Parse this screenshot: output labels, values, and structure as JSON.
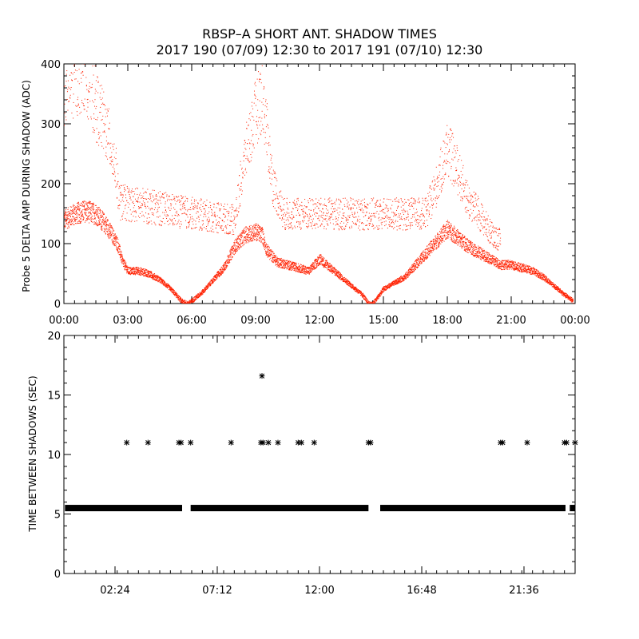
{
  "chart_data": [
    {
      "type": "scatter",
      "title": "RBSP–A SHORT ANT. SHADOW TIMES",
      "subtitle": "2017 190 (07/09) 12:30 to 2017 191 (07/10) 12:30",
      "ylabel": "Probe 5 DELTA AMP DURING SHADOW (ADC)",
      "xlabel": "",
      "x_unit": "hours",
      "xlim": [
        0,
        24
      ],
      "ylim": [
        0,
        400
      ],
      "x_tick_values": [
        0,
        3,
        6,
        9,
        12,
        15,
        18,
        21,
        24
      ],
      "x_tick_labels": [
        "00:00",
        "03:00",
        "06:00",
        "09:00",
        "12:00",
        "15:00",
        "18:00",
        "21:00",
        "00:00"
      ],
      "y_tick_values": [
        0,
        100,
        200,
        300,
        400
      ],
      "y_tick_labels": [
        "0",
        "100",
        "200",
        "300",
        "400"
      ],
      "marker_color": "#ff2000",
      "series": [
        {
          "points_x": [
            0,
            0.5,
            1,
            1.5,
            2,
            2.5,
            2.75,
            3,
            3.5,
            4,
            4.5,
            5,
            5.5,
            5.8,
            6,
            6.5,
            7,
            7.5,
            8,
            8.5,
            9,
            9.3,
            9.5,
            10,
            10.5,
            11,
            11.5,
            12,
            12.5,
            13,
            13.5,
            14,
            14.3,
            14.5,
            15,
            15.5,
            16,
            16.5,
            17,
            17.5,
            18,
            18.5,
            19,
            19.5,
            20,
            20.5,
            21,
            21.5,
            22,
            22.5,
            23,
            23.5,
            23.9
          ],
          "points_y": [
            140,
            150,
            155,
            150,
            130,
            100,
            70,
            55,
            55,
            50,
            40,
            25,
            5,
            0,
            5,
            20,
            40,
            60,
            95,
            115,
            120,
            115,
            90,
            70,
            65,
            60,
            55,
            75,
            60,
            45,
            30,
            15,
            0,
            0,
            25,
            35,
            45,
            65,
            85,
            105,
            125,
            110,
            95,
            85,
            75,
            65,
            65,
            60,
            55,
            45,
            30,
            15,
            5
          ]
        },
        {
          "points_x": [
            0,
            0.5,
            1,
            1.5,
            2,
            2.4,
            2.6,
            8,
            8.5,
            9,
            9.3,
            9.5,
            9.8,
            10.3,
            17,
            17.5,
            18,
            18.5,
            19,
            19.5,
            20,
            20.5
          ],
          "points_y": [
            360,
            380,
            390,
            330,
            290,
            230,
            170,
            140,
            250,
            320,
            350,
            290,
            200,
            150,
            150,
            200,
            260,
            220,
            170,
            150,
            120,
            105
          ]
        }
      ]
    },
    {
      "type": "scatter",
      "ylabel": "TIME BETWEEN SHADOWS (SEC)",
      "xlabel": "",
      "x_unit": "hours",
      "xlim": [
        0,
        24
      ],
      "ylim": [
        0,
        20
      ],
      "x_tick_values": [
        2.4,
        7.2,
        12,
        16.8,
        21.6
      ],
      "x_tick_labels": [
        "02:24",
        "07:12",
        "12:00",
        "16:48",
        "21:36"
      ],
      "y_tick_values": [
        0,
        5,
        10,
        15,
        20
      ],
      "y_tick_labels": [
        "0",
        "5",
        "10",
        "15",
        "20"
      ],
      "marker": "*",
      "marker_color": "#000000",
      "baseline": {
        "value": 5.5,
        "segments": [
          [
            0.05,
            5.55
          ],
          [
            5.95,
            14.3
          ],
          [
            14.85,
            23.55
          ],
          [
            23.75,
            24.0
          ]
        ]
      },
      "outliers": {
        "x": [
          2.95,
          3.95,
          5.4,
          5.5,
          5.95,
          7.85,
          9.25,
          9.35,
          9.6,
          10.05,
          11.0,
          11.15,
          11.75,
          14.3,
          14.4,
          20.5,
          20.6,
          21.75,
          23.5,
          23.6,
          24.0
        ],
        "y": [
          11,
          11,
          11,
          11,
          11,
          11,
          11,
          11,
          11,
          11,
          11,
          11,
          11,
          11,
          11,
          11,
          11,
          11,
          11,
          11,
          11
        ]
      },
      "extra_points": {
        "x": [
          9.3
        ],
        "y": [
          16.6
        ]
      }
    }
  ]
}
